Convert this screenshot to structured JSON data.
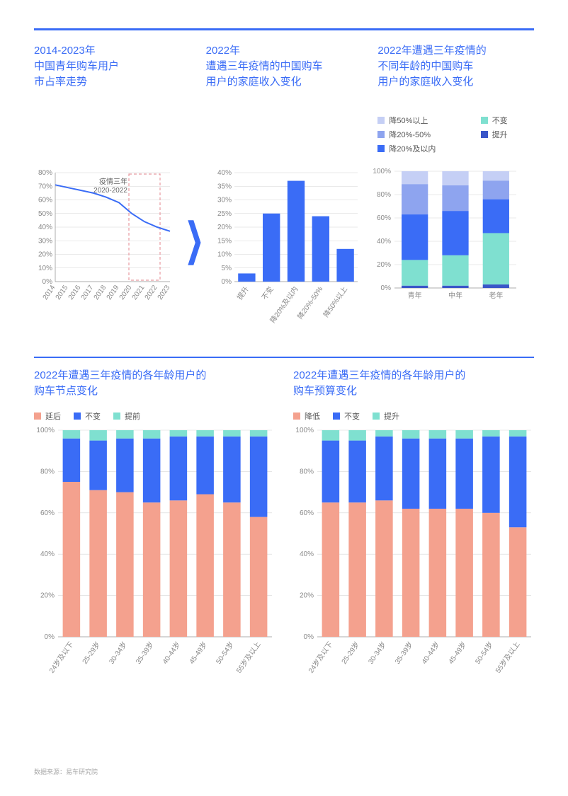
{
  "colors": {
    "accent": "#3a6cf6",
    "grid": "#d6d6d6",
    "axis": "#999999",
    "text_muted": "#888888",
    "salmon": "#f4a18e",
    "blue": "#3a6cf6",
    "teal": "#7fe0d0",
    "blue_light": "#c5cff5",
    "blue_mid": "#8ea4ef",
    "blue_dark": "#3a56c8"
  },
  "source_label": "数据来源：易车研究院",
  "top": {
    "col1": {
      "title": "2014-2023年\n中国青年购车用户\n市占率走势",
      "chart": {
        "type": "line",
        "ylim": [
          0,
          80
        ],
        "ytick_step": 10,
        "y_suffix": "%",
        "x_labels": [
          "2014",
          "2015",
          "2016",
          "2017",
          "2018",
          "2019",
          "2020",
          "2021",
          "2022",
          "2023"
        ],
        "values": [
          71,
          69,
          67,
          65,
          62,
          58,
          50,
          44,
          40,
          37
        ],
        "line_color": "#3a6cf6",
        "annotation": {
          "text": "疫情三年\n2020-2022",
          "x_start_idx": 6,
          "x_end_idx": 8,
          "box_color": "#e89aa0"
        }
      }
    },
    "arrow_glyph": "❯",
    "col2": {
      "title": "2022年\n遭遇三年疫情的中国购车\n用户的家庭收入变化",
      "chart": {
        "type": "bar",
        "ylim": [
          0,
          40
        ],
        "ytick_step": 5,
        "y_suffix": "%",
        "x_labels": [
          "提升",
          "不变",
          "降20%及以内",
          "降20%-50%",
          "降50%以上"
        ],
        "values": [
          3,
          25,
          37,
          24,
          12
        ],
        "bar_color": "#3a6cf6"
      }
    },
    "col3": {
      "title": "2022年遭遇三年疫情的\n不同年龄的中国购车\n用户的家庭收入变化",
      "legend": [
        {
          "label": "降50%以上",
          "color": "#c5cff5"
        },
        {
          "label": "不变",
          "color": "#7fe0d0"
        },
        {
          "label": "降20%-50%",
          "color": "#8ea4ef"
        },
        {
          "label": "提升",
          "color": "#3a56c8"
        },
        {
          "label": "降20%及以内",
          "color": "#3a6cf6"
        }
      ],
      "chart": {
        "type": "stacked_bar",
        "ylim": [
          0,
          100
        ],
        "ytick_step": 20,
        "y_suffix": "%",
        "x_labels": [
          "青年",
          "中年",
          "老年"
        ],
        "stack_order": [
          "提升",
          "不变",
          "降20%及以内",
          "降20%-50%",
          "降50%以上"
        ],
        "stack_colors": {
          "提升": "#3a56c8",
          "不变": "#7fe0d0",
          "降20%及以内": "#3a6cf6",
          "降20%-50%": "#8ea4ef",
          "降50%以上": "#c5cff5"
        },
        "series": {
          "青年": {
            "提升": 2,
            "不变": 22,
            "降20%及以内": 39,
            "降20%-50%": 26,
            "降50%以上": 11
          },
          "中年": {
            "提升": 2,
            "不变": 26,
            "降20%及以内": 38,
            "降20%-50%": 22,
            "降50%以上": 12
          },
          "老年": {
            "提升": 3,
            "不变": 44,
            "降20%及以内": 29,
            "降20%-50%": 16,
            "降50%以上": 8
          }
        }
      }
    }
  },
  "bottom": {
    "left": {
      "title": "2022年遭遇三年疫情的各年龄用户的\n购车节点变化",
      "legend": [
        {
          "label": "延后",
          "color": "#f4a18e"
        },
        {
          "label": "不变",
          "color": "#3a6cf6"
        },
        {
          "label": "提前",
          "color": "#7fe0d0"
        }
      ],
      "chart": {
        "type": "stacked_bar",
        "ylim": [
          0,
          100
        ],
        "ytick_step": 20,
        "y_suffix": "%",
        "x_labels": [
          "24岁及以下",
          "25-29岁",
          "30-34岁",
          "35-39岁",
          "40-44岁",
          "45-49岁",
          "50-54岁",
          "55岁及以上"
        ],
        "stack_order": [
          "延后",
          "不变",
          "提前"
        ],
        "stack_colors": {
          "延后": "#f4a18e",
          "不变": "#3a6cf6",
          "提前": "#7fe0d0"
        },
        "series": {
          "24岁及以下": {
            "延后": 75,
            "不变": 21,
            "提前": 4
          },
          "25-29岁": {
            "延后": 71,
            "不变": 24,
            "提前": 5
          },
          "30-34岁": {
            "延后": 70,
            "不变": 26,
            "提前": 4
          },
          "35-39岁": {
            "延后": 65,
            "不变": 31,
            "提前": 4
          },
          "40-44岁": {
            "延后": 66,
            "不变": 31,
            "提前": 3
          },
          "45-49岁": {
            "延后": 69,
            "不变": 28,
            "提前": 3
          },
          "50-54岁": {
            "延后": 65,
            "不变": 32,
            "提前": 3
          },
          "55岁及以上": {
            "延后": 58,
            "不变": 39,
            "提前": 3
          }
        }
      }
    },
    "right": {
      "title": "2022年遭遇三年疫情的各年龄用户的\n购车预算变化",
      "legend": [
        {
          "label": "降低",
          "color": "#f4a18e"
        },
        {
          "label": "不变",
          "color": "#3a6cf6"
        },
        {
          "label": "提升",
          "color": "#7fe0d0"
        }
      ],
      "chart": {
        "type": "stacked_bar",
        "ylim": [
          0,
          100
        ],
        "ytick_step": 20,
        "y_suffix": "%",
        "x_labels": [
          "24岁及以下",
          "25-29岁",
          "30-34岁",
          "35-39岁",
          "40-44岁",
          "45-49岁",
          "50-54岁",
          "55岁及以上"
        ],
        "stack_order": [
          "降低",
          "不变",
          "提升"
        ],
        "stack_colors": {
          "降低": "#f4a18e",
          "不变": "#3a6cf6",
          "提升": "#7fe0d0"
        },
        "series": {
          "24岁及以下": {
            "降低": 65,
            "不变": 30,
            "提升": 5
          },
          "25-29岁": {
            "降低": 65,
            "不变": 30,
            "提升": 5
          },
          "30-34岁": {
            "降低": 66,
            "不变": 31,
            "提升": 3
          },
          "35-39岁": {
            "降低": 62,
            "不变": 34,
            "提升": 4
          },
          "40-44岁": {
            "降低": 62,
            "不变": 34,
            "提升": 4
          },
          "45-49岁": {
            "降低": 62,
            "不变": 34,
            "提升": 4
          },
          "50-54岁": {
            "降低": 60,
            "不变": 37,
            "提升": 3
          },
          "55岁及以上": {
            "降低": 53,
            "不变": 44,
            "提升": 3
          }
        }
      }
    }
  }
}
